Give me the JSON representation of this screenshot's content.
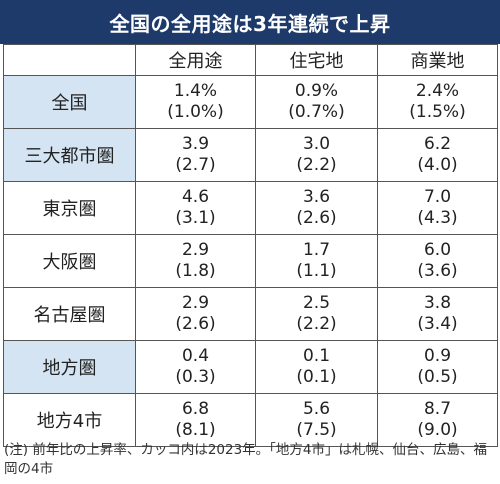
{
  "title": "全国の全用途は3年連続で上昇",
  "columns": [
    "全用途",
    "住宅地",
    "商業地"
  ],
  "rows": [
    {
      "label": "全国",
      "highlight": true,
      "values": [
        [
          "1.4%",
          "(1.0%)"
        ],
        [
          "0.9%",
          "(0.7%)"
        ],
        [
          "2.4%",
          "(1.5%)"
        ]
      ]
    },
    {
      "label": "三大都市圏",
      "highlight": true,
      "values": [
        [
          "3.9",
          "(2.7)"
        ],
        [
          "3.0",
          "(2.2)"
        ],
        [
          "6.2",
          "(4.0)"
        ]
      ]
    },
    {
      "label": "東京圏",
      "highlight": false,
      "values": [
        [
          "4.6",
          "(3.1)"
        ],
        [
          "3.6",
          "(2.6)"
        ],
        [
          "7.0",
          "(4.3)"
        ]
      ]
    },
    {
      "label": "大阪圏",
      "highlight": false,
      "values": [
        [
          "2.9",
          "(1.8)"
        ],
        [
          "1.7",
          "(1.1)"
        ],
        [
          "6.0",
          "(3.6)"
        ]
      ]
    },
    {
      "label": "名古屋圏",
      "highlight": false,
      "values": [
        [
          "2.9",
          "(2.6)"
        ],
        [
          "2.5",
          "(2.2)"
        ],
        [
          "3.8",
          "(3.4)"
        ]
      ]
    },
    {
      "label": "地方圏",
      "highlight": true,
      "values": [
        [
          "0.4",
          "(0.3)"
        ],
        [
          "0.1",
          "(0.1)"
        ],
        [
          "0.9",
          "(0.5)"
        ]
      ]
    },
    {
      "label": "地方4市",
      "highlight": false,
      "values": [
        [
          "6.8",
          "(8.1)"
        ],
        [
          "5.6",
          "(7.5)"
        ],
        [
          "8.7",
          "(9.0)"
        ]
      ]
    }
  ],
  "note": "(注) 前年比の上昇率、カッコ内は2023年。「地方4市」は札幌、仙台、広島、福岡の4市",
  "colors": {
    "title_bg": "#1e3a6a",
    "highlight_bg": "#d4e4f2"
  }
}
